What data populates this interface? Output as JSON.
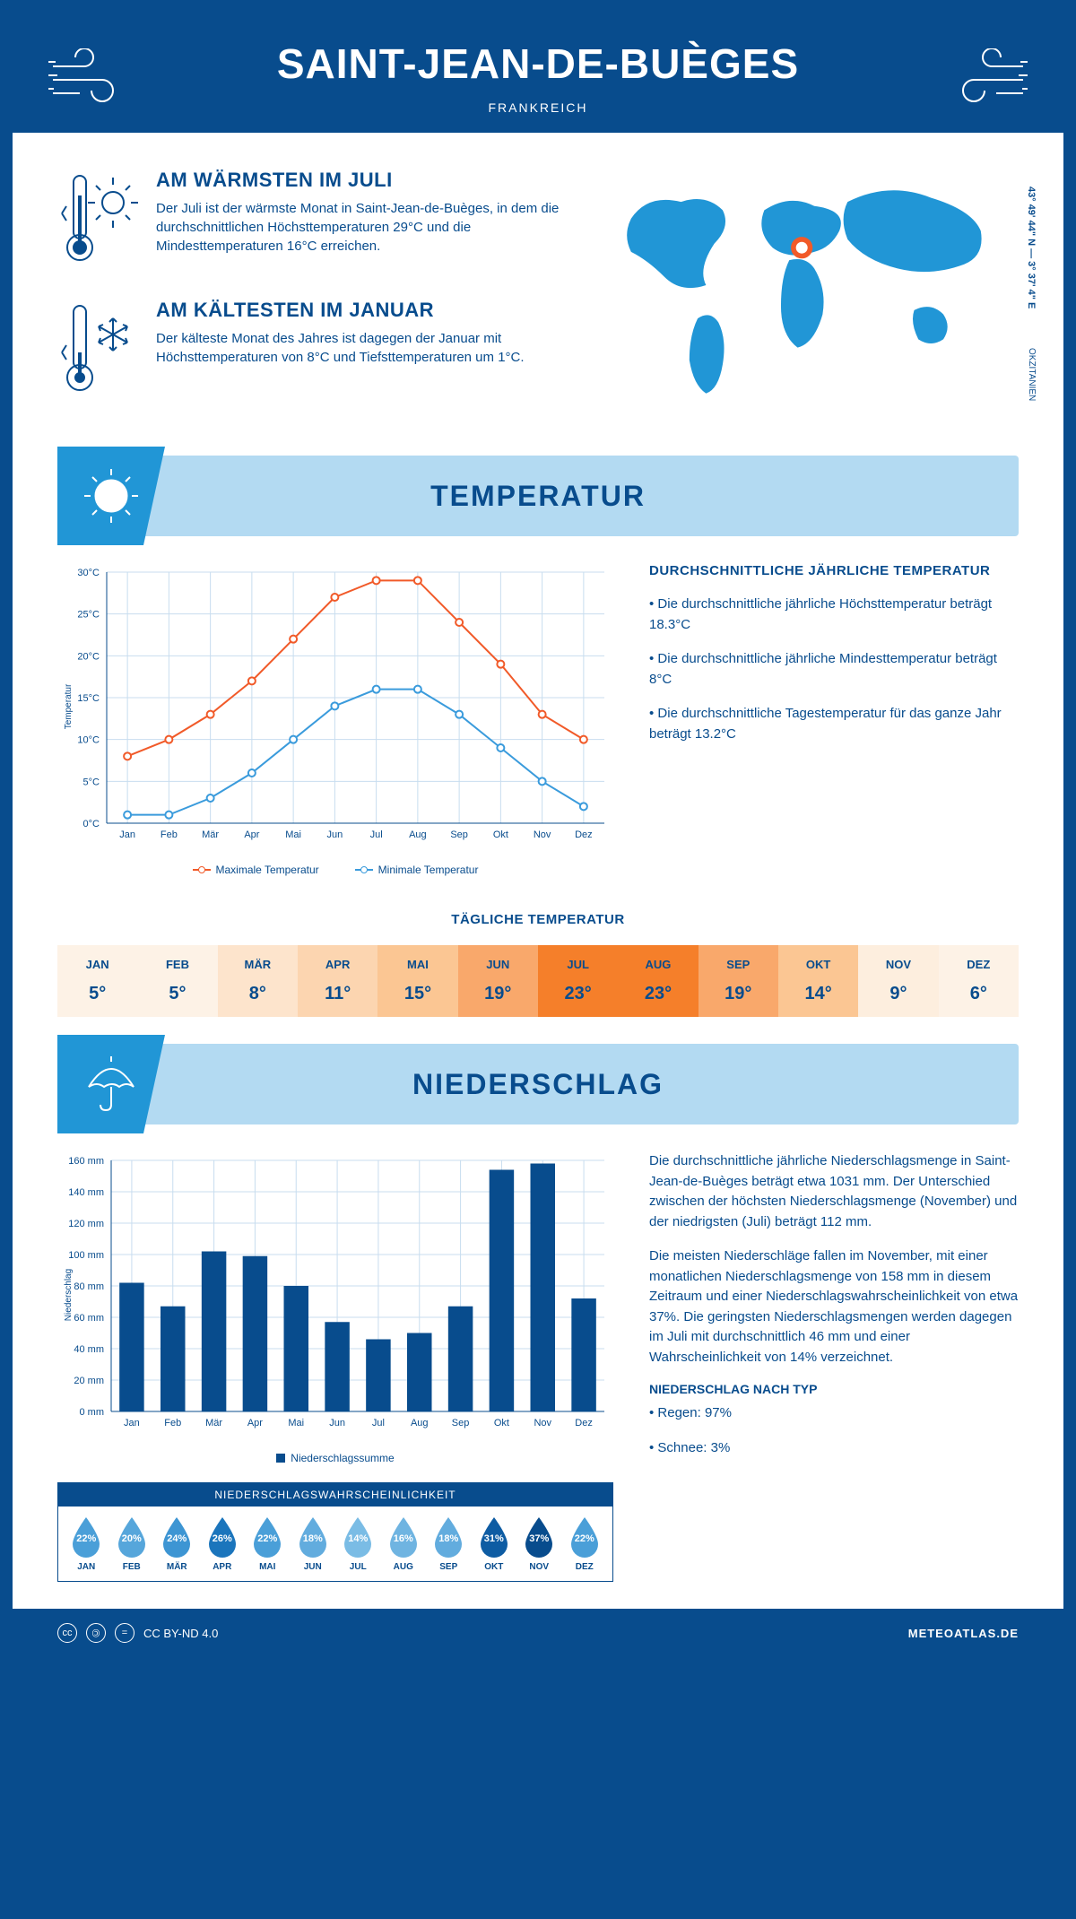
{
  "header": {
    "title": "SAINT-JEAN-DE-BUÈGES",
    "country": "FRANKREICH"
  },
  "coords": "43° 49' 44\" N — 3° 37' 4\" E",
  "region": "OKZITANIEN",
  "warmest": {
    "title": "AM WÄRMSTEN IM JULI",
    "text": "Der Juli ist der wärmste Monat in Saint-Jean-de-Buèges, in dem die durchschnittlichen Höchsttemperaturen 29°C und die Mindesttemperaturen 16°C erreichen."
  },
  "coldest": {
    "title": "AM KÄLTESTEN IM JANUAR",
    "text": "Der kälteste Monat des Jahres ist dagegen der Januar mit Höchsttemperaturen von 8°C und Tiefsttemperaturen um 1°C."
  },
  "temp_section": {
    "title": "TEMPERATUR",
    "avg_title": "DURCHSCHNITTLICHE JÄHRLICHE TEMPERATUR",
    "p1": "• Die durchschnittliche jährliche Höchsttemperatur beträgt 18.3°C",
    "p2": "• Die durchschnittliche jährliche Mindesttemperatur beträgt 8°C",
    "p3": "• Die durchschnittliche Tagestemperatur für das ganze Jahr beträgt 13.2°C",
    "legend_max": "Maximale Temperatur",
    "legend_min": "Minimale Temperatur",
    "y_label": "Temperatur",
    "daily_title": "TÄGLICHE TEMPERATUR"
  },
  "months": [
    "Jan",
    "Feb",
    "Mär",
    "Apr",
    "Mai",
    "Jun",
    "Jul",
    "Aug",
    "Sep",
    "Okt",
    "Nov",
    "Dez"
  ],
  "months_upper": [
    "JAN",
    "FEB",
    "MÄR",
    "APR",
    "MAI",
    "JUN",
    "JUL",
    "AUG",
    "SEP",
    "OKT",
    "NOV",
    "DEZ"
  ],
  "temp_chart": {
    "max_color": "#f15a29",
    "min_color": "#3a9bdc",
    "grid_color": "#c8ddef",
    "bg": "#ffffff",
    "ylim": [
      0,
      30
    ],
    "ytick_step": 5,
    "max_values": [
      8,
      10,
      13,
      17,
      22,
      27,
      29,
      29,
      24,
      19,
      13,
      10
    ],
    "min_values": [
      1,
      1,
      3,
      6,
      10,
      14,
      16,
      16,
      13,
      9,
      5,
      2
    ]
  },
  "daily_temp": {
    "values": [
      "5°",
      "5°",
      "8°",
      "11°",
      "15°",
      "19°",
      "23°",
      "23°",
      "19°",
      "14°",
      "9°",
      "6°"
    ],
    "colors": [
      "#fdf2e6",
      "#fdf2e6",
      "#fde4cc",
      "#fcd5b0",
      "#fbc693",
      "#f9a86b",
      "#f57f2a",
      "#f57f2a",
      "#f9a86b",
      "#fbc693",
      "#fdeede",
      "#fdf2e6"
    ]
  },
  "precip_section": {
    "title": "NIEDERSCHLAG",
    "y_label": "Niederschlag",
    "legend": "Niederschlagssumme",
    "p1": "Die durchschnittliche jährliche Niederschlagsmenge in Saint-Jean-de-Buèges beträgt etwa 1031 mm. Der Unterschied zwischen der höchsten Niederschlagsmenge (November) und der niedrigsten (Juli) beträgt 112 mm.",
    "p2": "Die meisten Niederschläge fallen im November, mit einer monatlichen Niederschlagsmenge von 158 mm in diesem Zeitraum und einer Niederschlagswahrscheinlichkeit von etwa 37%. Die geringsten Niederschlagsmengen werden dagegen im Juli mit durchschnittlich 46 mm und einer Wahrscheinlichkeit von 14% verzeichnet.",
    "type_title": "NIEDERSCHLAG NACH TYP",
    "type1": "• Regen: 97%",
    "type2": "• Schnee: 3%"
  },
  "precip_chart": {
    "bar_color": "#084c8d",
    "grid_color": "#c8ddef",
    "ylim": [
      0,
      160
    ],
    "ytick_step": 20,
    "values": [
      82,
      67,
      102,
      99,
      80,
      57,
      46,
      50,
      67,
      154,
      158,
      72
    ]
  },
  "prob": {
    "title": "NIEDERSCHLAGSWAHRSCHEINLICHKEIT",
    "values": [
      22,
      20,
      24,
      26,
      22,
      18,
      14,
      16,
      18,
      31,
      37,
      22
    ],
    "colors": [
      "#4a9fd8",
      "#56a6db",
      "#3d95d3",
      "#1b75bc",
      "#4a9fd8",
      "#62acde",
      "#7abce5",
      "#6fb4e1",
      "#62acde",
      "#0e5ca3",
      "#084c8d",
      "#4a9fd8"
    ]
  },
  "footer": {
    "license": "CC BY-ND 4.0",
    "site": "METEOATLAS.DE"
  }
}
